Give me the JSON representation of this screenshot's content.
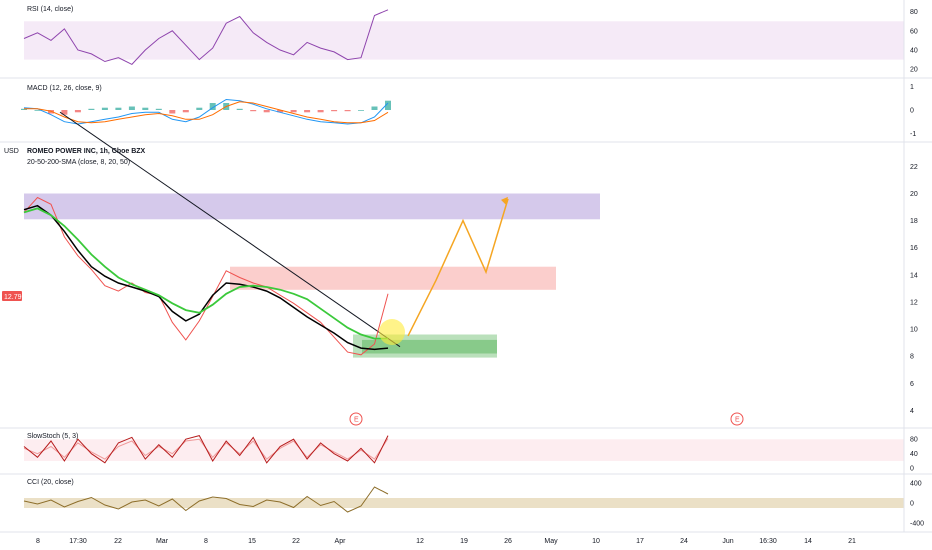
{
  "chart_data": {
    "type": "line",
    "title": "ROMEO POWER INC, 1h, Cboe BZX",
    "indicator_label": "20-50-200-SMA (close, 8, 20, 50)",
    "currency": "USD",
    "price_badge": "12.79",
    "y_ticks": [
      "22",
      "20",
      "18",
      "16",
      "14",
      "12",
      "10",
      "8",
      "6",
      "4"
    ],
    "ylim": [
      3,
      23.5
    ],
    "x_ticks": [
      "8",
      "17:30",
      "22",
      "Mar",
      "8",
      "15",
      "22",
      "Apr",
      "12",
      "19",
      "26",
      "May",
      "10",
      "17",
      "24",
      "Jun",
      "16:30",
      "14",
      "21"
    ],
    "earnings_markers": [
      "E",
      "E"
    ],
    "zones": [
      {
        "name": "resistance-zone-purple",
        "y1": 18.1,
        "y2": 20.0,
        "color": "#b39ddb"
      },
      {
        "name": "resistance-zone-red",
        "y1": 12.9,
        "y2": 14.6,
        "color": "#f8a5a2"
      },
      {
        "name": "support-zone-green",
        "y1": 7.9,
        "y2": 9.6,
        "color": "#81c784"
      }
    ],
    "series": [
      {
        "values": [
          18.6,
          19.7,
          19.2,
          16.8,
          15.4,
          14.4,
          13.2,
          12.8,
          13.4,
          12.7,
          12.5,
          10.5,
          9.2,
          10.6,
          12.4,
          14.3,
          13.8,
          13.4,
          13.1,
          12.5,
          11.9,
          11.2,
          10.5,
          9.4,
          8.3,
          8.1,
          8.9,
          12.6
        ]
      },
      {
        "values": [
          18.8,
          19.1,
          18.4,
          17.2,
          15.8,
          14.6,
          13.9,
          13.4,
          13.1,
          12.8,
          12.4,
          11.3,
          10.6,
          11.1,
          12.5,
          13.4,
          13.3,
          13.1,
          12.8,
          12.3,
          11.6,
          10.9,
          10.3,
          9.7,
          9.0,
          8.6,
          8.5,
          8.6
        ]
      },
      {
        "values": [
          18.6,
          18.9,
          18.4,
          17.6,
          16.6,
          15.5,
          14.6,
          13.8,
          13.3,
          12.9,
          12.5,
          11.9,
          11.4,
          11.2,
          11.8,
          12.6,
          13.1,
          13.2,
          13.1,
          12.9,
          12.6,
          12.2,
          11.5,
          10.8,
          10.1,
          9.6,
          9.3,
          9.3
        ]
      }
    ],
    "series_colors": [
      "#ef5350",
      "#000000",
      "#3bc93b"
    ],
    "projection": {
      "points": [
        [
          0,
          9.5
        ],
        [
          1,
          13.6
        ],
        [
          2,
          18.0
        ],
        [
          3,
          14.2
        ],
        [
          4,
          19.6
        ]
      ],
      "color": "#f5a623"
    },
    "trendline": {
      "from": [
        0,
        26.0
      ],
      "to": [
        1,
        8.7
      ],
      "color": "#131722"
    },
    "rsi": {
      "label": "RSI (14, close)",
      "ticks": [
        "80",
        "60",
        "40",
        "20"
      ],
      "band": [
        30,
        70
      ],
      "values": [
        52,
        58,
        50,
        62,
        40,
        36,
        28,
        32,
        25,
        40,
        52,
        60,
        45,
        30,
        42,
        68,
        75,
        58,
        48,
        40,
        35,
        48,
        42,
        38,
        30,
        32,
        76,
        82
      ]
    },
    "macd": {
      "label": "MACD (12, 26, close, 9)",
      "ticks": [
        "1",
        "0",
        "-1"
      ],
      "macd": [
        0.1,
        0.05,
        -0.2,
        -0.5,
        -0.6,
        -0.5,
        -0.4,
        -0.3,
        -0.15,
        -0.1,
        -0.1,
        -0.4,
        -0.5,
        -0.3,
        0.1,
        0.45,
        0.4,
        0.25,
        0.05,
        -0.1,
        -0.25,
        -0.4,
        -0.5,
        -0.55,
        -0.6,
        -0.55,
        -0.3,
        0.3
      ],
      "signal": [
        0.05,
        0.05,
        -0.05,
        -0.3,
        -0.5,
        -0.55,
        -0.5,
        -0.4,
        -0.3,
        -0.2,
        -0.15,
        -0.25,
        -0.4,
        -0.4,
        -0.2,
        0.15,
        0.35,
        0.3,
        0.15,
        0.0,
        -0.15,
        -0.3,
        -0.4,
        -0.5,
        -0.55,
        -0.55,
        -0.45,
        -0.1
      ],
      "hist": [
        0.05,
        0.0,
        -0.15,
        -0.2,
        -0.1,
        0.05,
        0.1,
        0.1,
        0.15,
        0.1,
        0.05,
        -0.15,
        -0.1,
        0.1,
        0.3,
        0.3,
        0.05,
        -0.05,
        -0.1,
        -0.1,
        -0.1,
        -0.1,
        -0.1,
        -0.05,
        -0.05,
        0.0,
        0.15,
        0.4
      ]
    },
    "stoch": {
      "label": "SlowStoch (5, 3)",
      "ticks": [
        "80",
        "40",
        "0"
      ],
      "band": [
        20,
        80
      ],
      "k": [
        60,
        30,
        75,
        20,
        80,
        40,
        15,
        70,
        85,
        25,
        65,
        30,
        80,
        90,
        20,
        75,
        35,
        85,
        15,
        60,
        80,
        25,
        70,
        40,
        20,
        55,
        15,
        90
      ],
      "d": [
        55,
        40,
        60,
        30,
        70,
        45,
        25,
        60,
        75,
        35,
        60,
        40,
        75,
        80,
        30,
        70,
        40,
        75,
        25,
        55,
        75,
        30,
        65,
        45,
        25,
        50,
        25,
        82
      ]
    },
    "cci": {
      "label": "CCI (20, close)",
      "ticks": [
        "400",
        "0",
        "-400"
      ],
      "band": [
        -100,
        100
      ],
      "values": [
        40,
        -20,
        60,
        -80,
        30,
        110,
        -40,
        -120,
        20,
        60,
        -60,
        80,
        -150,
        40,
        120,
        90,
        -30,
        -70,
        60,
        20,
        -90,
        130,
        -50,
        30,
        -180,
        -60,
        320,
        180
      ]
    }
  }
}
